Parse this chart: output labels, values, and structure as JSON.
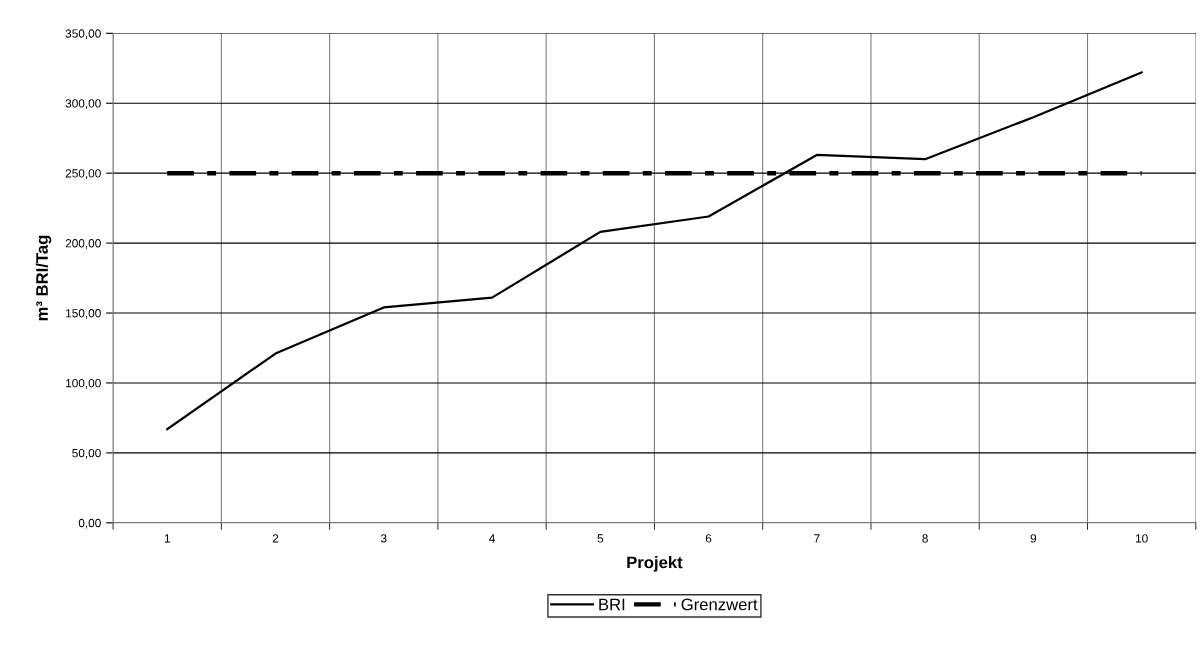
{
  "chart_data": {
    "type": "line",
    "xlabel": "Projekt",
    "ylabel": "m³ BRI/Tag",
    "categories": [
      "1",
      "2",
      "3",
      "4",
      "5",
      "6",
      "7",
      "8",
      "9",
      "10"
    ],
    "series": [
      {
        "name": "BRI",
        "color": "#000000",
        "line_style": "solid",
        "values": [
          67,
          121,
          154,
          161,
          208,
          219,
          263,
          260,
          290,
          322
        ]
      },
      {
        "name": "Grenzwert",
        "color": "#000000",
        "line_style": "dashdot",
        "values": [
          250,
          250,
          250,
          250,
          250,
          250,
          250,
          250,
          250,
          250
        ]
      }
    ],
    "ylim": [
      0,
      350
    ],
    "yticks": [
      {
        "value": 0,
        "label": "0,00"
      },
      {
        "value": 50,
        "label": "50,00"
      },
      {
        "value": 100,
        "label": "100,00"
      },
      {
        "value": 150,
        "label": "150,00"
      },
      {
        "value": 200,
        "label": "200,00"
      },
      {
        "value": 250,
        "label": "250,00"
      },
      {
        "value": 300,
        "label": "300,00"
      },
      {
        "value": 350,
        "label": "350,00"
      }
    ],
    "grid": true,
    "legend": "bottom",
    "marker": "none"
  }
}
